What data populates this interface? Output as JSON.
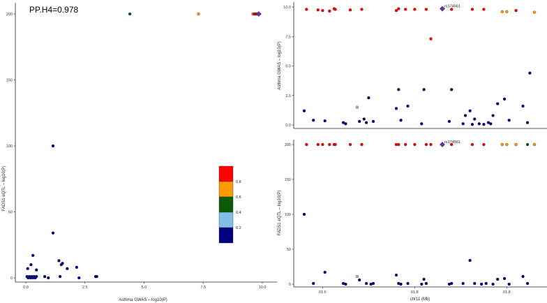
{
  "annotation": "PP.H4=0.978",
  "colors": {
    "bin_02": "#00007f",
    "bin_04": "#7fbfe6",
    "bin_06": "#0a5a0a",
    "bin_08": "#ff9a00",
    "bin_10": "#ff0000",
    "lead": "#7030a0"
  },
  "chart_data": [
    {
      "id": "scatter",
      "type": "scatter",
      "xlabel": "Asthma GWAS – log10(P)",
      "ylabel": "FADS1 eQTL – log10(P)",
      "xlim": [
        0,
        10
      ],
      "ylim": [
        0,
        200
      ],
      "xticks": [
        "0.0",
        "2.5",
        "5.0",
        "7.5",
        "10.0"
      ],
      "yticks": [
        "0",
        "50",
        "100",
        "150",
        "200"
      ],
      "legend": {
        "placement": "right",
        "labels": [
          "0.2",
          "0.4",
          "0.6",
          "0.8"
        ]
      },
      "points": [
        {
          "x": 0.05,
          "y": 1,
          "c": "bin_02"
        },
        {
          "x": 0.1,
          "y": 0,
          "c": "bin_02"
        },
        {
          "x": 0.15,
          "y": 1,
          "c": "bin_02"
        },
        {
          "x": 0.2,
          "y": 0,
          "c": "bin_02"
        },
        {
          "x": 0.25,
          "y": 1,
          "c": "bin_02"
        },
        {
          "x": 0.3,
          "y": 0,
          "c": "bin_02"
        },
        {
          "x": 0.35,
          "y": 1,
          "c": "bin_02"
        },
        {
          "x": 0.4,
          "y": 0,
          "c": "bin_02"
        },
        {
          "x": 0.45,
          "y": 1,
          "c": "bin_02"
        },
        {
          "x": 0.08,
          "y": 7,
          "c": "bin_02"
        },
        {
          "x": 0.22,
          "y": 10,
          "c": "bin_02"
        },
        {
          "x": 0.3,
          "y": 17,
          "c": "bin_02"
        },
        {
          "x": 0.45,
          "y": 6,
          "c": "bin_02"
        },
        {
          "x": 0.8,
          "y": 1,
          "c": "bin_02"
        },
        {
          "x": 0.95,
          "y": 0,
          "c": "bin_02"
        },
        {
          "x": 1.15,
          "y": 100,
          "c": "bin_02"
        },
        {
          "x": 1.15,
          "y": 34,
          "c": "bin_02"
        },
        {
          "x": 1.4,
          "y": 13,
          "c": "bin_02"
        },
        {
          "x": 1.5,
          "y": 10,
          "c": "bin_02"
        },
        {
          "x": 1.55,
          "y": 11,
          "c": "bin_02"
        },
        {
          "x": 1.45,
          "y": 1,
          "c": "bin_02"
        },
        {
          "x": 1.75,
          "y": 7,
          "c": "bin_02"
        },
        {
          "x": 2.15,
          "y": 8,
          "c": "bin_02"
        },
        {
          "x": 2.25,
          "y": 0,
          "c": "bin_02"
        },
        {
          "x": 2.95,
          "y": 1,
          "c": "bin_02"
        },
        {
          "x": 3.0,
          "y": 1,
          "c": "bin_02"
        },
        {
          "x": 4.4,
          "y": 200,
          "c": "bin_06"
        },
        {
          "x": 7.3,
          "y": 200,
          "c": "bin_08"
        },
        {
          "x": 9.6,
          "y": 200,
          "c": "bin_08"
        },
        {
          "x": 9.65,
          "y": 200,
          "c": "bin_10"
        },
        {
          "x": 9.7,
          "y": 200,
          "c": "bin_10"
        },
        {
          "x": 9.72,
          "y": 200,
          "c": "bin_10"
        },
        {
          "x": 9.75,
          "y": 200,
          "c": "bin_10"
        },
        {
          "x": 9.78,
          "y": 200,
          "c": "bin_10"
        },
        {
          "x": 9.8,
          "y": 200,
          "c": "bin_10"
        },
        {
          "x": 9.85,
          "y": 200,
          "c": "lead",
          "lead": true
        }
      ]
    },
    {
      "id": "gwas",
      "type": "scatter",
      "xlabel": "",
      "ylabel": "Asthma GWAS – log10(P)",
      "ylim": [
        0,
        10
      ],
      "yticks": [
        "0.0",
        "2.5",
        "5.0",
        "7.5",
        "10.0"
      ],
      "lead_label": "rs174561",
      "points": [
        {
          "x": 0.01,
          "y": 9.8,
          "c": "bin_10"
        },
        {
          "x": 0.06,
          "y": 9.75,
          "c": "bin_10"
        },
        {
          "x": 0.08,
          "y": 9.7,
          "c": "bin_10"
        },
        {
          "x": 0.11,
          "y": 9.65,
          "c": "bin_10"
        },
        {
          "x": 0.13,
          "y": 9.85,
          "c": "bin_10"
        },
        {
          "x": 0.135,
          "y": 9.8,
          "c": "bin_10"
        },
        {
          "x": 0.2,
          "y": 9.75,
          "c": "bin_10"
        },
        {
          "x": 0.25,
          "y": 9.8,
          "c": "bin_10"
        },
        {
          "x": 0.4,
          "y": 9.7,
          "c": "bin_10"
        },
        {
          "x": 0.41,
          "y": 9.85,
          "c": "bin_10"
        },
        {
          "x": 0.44,
          "y": 9.8,
          "c": "bin_10"
        },
        {
          "x": 0.48,
          "y": 9.8,
          "c": "bin_10"
        },
        {
          "x": 0.53,
          "y": 9.8,
          "c": "bin_10"
        },
        {
          "x": 0.55,
          "y": 7.3,
          "c": "bin_10"
        },
        {
          "x": 0.6,
          "y": 9.85,
          "c": "lead",
          "lead": true
        },
        {
          "x": 0.64,
          "y": 9.8,
          "c": "bin_10"
        },
        {
          "x": 0.73,
          "y": 9.8,
          "c": "bin_10"
        },
        {
          "x": 0.78,
          "y": 9.8,
          "c": "bin_10"
        },
        {
          "x": 0.86,
          "y": 9.6,
          "c": "bin_08"
        },
        {
          "x": 0.88,
          "y": 9.6,
          "c": "bin_08"
        },
        {
          "x": 0.92,
          "y": 9.7,
          "c": "bin_10"
        },
        {
          "x": 1.0,
          "y": 9.55,
          "c": "bin_08"
        },
        {
          "x": 0.0,
          "y": 1.2,
          "c": "bin_02"
        },
        {
          "x": 0.04,
          "y": 0.4,
          "c": "bin_02"
        },
        {
          "x": 0.09,
          "y": 0.35,
          "c": "bin_02"
        },
        {
          "x": 0.17,
          "y": 0.2,
          "c": "bin_02"
        },
        {
          "x": 0.18,
          "y": 0.1,
          "c": "bin_02"
        },
        {
          "x": 0.23,
          "y": 1.5,
          "c": "bin_04"
        },
        {
          "x": 0.24,
          "y": 0.3,
          "c": "bin_02"
        },
        {
          "x": 0.26,
          "y": 0.5,
          "c": "bin_02"
        },
        {
          "x": 0.27,
          "y": 0.2,
          "c": "bin_02"
        },
        {
          "x": 0.28,
          "y": 2.3,
          "c": "bin_02"
        },
        {
          "x": 0.3,
          "y": 0.3,
          "c": "bin_02"
        },
        {
          "x": 0.4,
          "y": 1.4,
          "c": "bin_02"
        },
        {
          "x": 0.41,
          "y": 3.0,
          "c": "bin_02"
        },
        {
          "x": 0.42,
          "y": 0.4,
          "c": "bin_02"
        },
        {
          "x": 0.45,
          "y": 1.6,
          "c": "bin_02"
        },
        {
          "x": 0.51,
          "y": 0.1,
          "c": "bin_02"
        },
        {
          "x": 0.52,
          "y": 3.0,
          "c": "bin_02"
        },
        {
          "x": 0.63,
          "y": 0.3,
          "c": "bin_02"
        },
        {
          "x": 0.64,
          "y": 3.0,
          "c": "bin_02"
        },
        {
          "x": 0.69,
          "y": 0.1,
          "c": "bin_02"
        },
        {
          "x": 0.7,
          "y": 0.8,
          "c": "bin_02"
        },
        {
          "x": 0.72,
          "y": 1.2,
          "c": "bin_02"
        },
        {
          "x": 0.73,
          "y": 0.05,
          "c": "bin_02"
        },
        {
          "x": 0.74,
          "y": 0.5,
          "c": "bin_02"
        },
        {
          "x": 0.76,
          "y": 0.1,
          "c": "bin_02"
        },
        {
          "x": 0.78,
          "y": 0.05,
          "c": "bin_02"
        },
        {
          "x": 0.8,
          "y": 0.2,
          "c": "bin_02"
        },
        {
          "x": 0.81,
          "y": 0.1,
          "c": "bin_02"
        },
        {
          "x": 0.82,
          "y": 0.8,
          "c": "bin_02"
        },
        {
          "x": 0.84,
          "y": 1.8,
          "c": "bin_02"
        },
        {
          "x": 0.87,
          "y": 2.2,
          "c": "bin_02"
        },
        {
          "x": 0.89,
          "y": 0.4,
          "c": "bin_02"
        },
        {
          "x": 0.95,
          "y": 1.6,
          "c": "bin_02"
        },
        {
          "x": 0.97,
          "y": 0.2,
          "c": "bin_02"
        },
        {
          "x": 0.98,
          "y": 4.4,
          "c": "bin_02"
        }
      ]
    },
    {
      "id": "eqtl",
      "type": "scatter",
      "xlabel": "chr11 (Mb)",
      "ylabel": "FADS1 eQTL – log10(P)",
      "ylim": [
        0,
        200
      ],
      "yticks": [
        "0",
        "50",
        "100",
        "150",
        "200"
      ],
      "xticks": [
        "61.6",
        "61.8",
        "61.8"
      ],
      "lead_label": "rs174561",
      "points": [
        {
          "x": 0.01,
          "y": 200,
          "c": "bin_10"
        },
        {
          "x": 0.06,
          "y": 200,
          "c": "bin_10"
        },
        {
          "x": 0.08,
          "y": 200,
          "c": "bin_10"
        },
        {
          "x": 0.11,
          "y": 200,
          "c": "bin_10"
        },
        {
          "x": 0.13,
          "y": 200,
          "c": "bin_10"
        },
        {
          "x": 0.135,
          "y": 200,
          "c": "bin_10"
        },
        {
          "x": 0.2,
          "y": 200,
          "c": "bin_10"
        },
        {
          "x": 0.25,
          "y": 200,
          "c": "bin_10"
        },
        {
          "x": 0.4,
          "y": 200,
          "c": "bin_10"
        },
        {
          "x": 0.41,
          "y": 200,
          "c": "bin_10"
        },
        {
          "x": 0.44,
          "y": 200,
          "c": "bin_10"
        },
        {
          "x": 0.48,
          "y": 200,
          "c": "bin_10"
        },
        {
          "x": 0.53,
          "y": 200,
          "c": "bin_10"
        },
        {
          "x": 0.55,
          "y": 200,
          "c": "bin_10"
        },
        {
          "x": 0.6,
          "y": 200,
          "c": "lead",
          "lead": true
        },
        {
          "x": 0.64,
          "y": 200,
          "c": "bin_10"
        },
        {
          "x": 0.73,
          "y": 200,
          "c": "bin_10"
        },
        {
          "x": 0.78,
          "y": 200,
          "c": "bin_10"
        },
        {
          "x": 0.86,
          "y": 200,
          "c": "bin_08"
        },
        {
          "x": 0.88,
          "y": 200,
          "c": "bin_08"
        },
        {
          "x": 0.92,
          "y": 200,
          "c": "bin_08"
        },
        {
          "x": 0.97,
          "y": 200,
          "c": "bin_06"
        },
        {
          "x": 1.0,
          "y": 200,
          "c": "bin_08"
        },
        {
          "x": 0.0,
          "y": 100,
          "c": "bin_02"
        },
        {
          "x": 0.04,
          "y": 1,
          "c": "bin_02"
        },
        {
          "x": 0.09,
          "y": 17,
          "c": "bin_02"
        },
        {
          "x": 0.17,
          "y": 1,
          "c": "bin_02"
        },
        {
          "x": 0.18,
          "y": 0,
          "c": "bin_02"
        },
        {
          "x": 0.23,
          "y": 11,
          "c": "bin_04"
        },
        {
          "x": 0.24,
          "y": 6,
          "c": "bin_02"
        },
        {
          "x": 0.27,
          "y": 1,
          "c": "bin_02"
        },
        {
          "x": 0.29,
          "y": 0,
          "c": "bin_02"
        },
        {
          "x": 0.3,
          "y": 1,
          "c": "bin_02"
        },
        {
          "x": 0.4,
          "y": 13,
          "c": "bin_02"
        },
        {
          "x": 0.41,
          "y": 1,
          "c": "bin_02"
        },
        {
          "x": 0.42,
          "y": 0,
          "c": "bin_02"
        },
        {
          "x": 0.45,
          "y": 1,
          "c": "bin_02"
        },
        {
          "x": 0.51,
          "y": 0,
          "c": "bin_02"
        },
        {
          "x": 0.52,
          "y": 7,
          "c": "bin_02"
        },
        {
          "x": 0.53,
          "y": 1,
          "c": "bin_02"
        },
        {
          "x": 0.63,
          "y": 0,
          "c": "bin_02"
        },
        {
          "x": 0.64,
          "y": 1,
          "c": "bin_02"
        },
        {
          "x": 0.69,
          "y": 1,
          "c": "bin_02"
        },
        {
          "x": 0.72,
          "y": 34,
          "c": "bin_02"
        },
        {
          "x": 0.74,
          "y": 1,
          "c": "bin_02"
        },
        {
          "x": 0.77,
          "y": 0,
          "c": "bin_02"
        },
        {
          "x": 0.79,
          "y": 1,
          "c": "bin_02"
        },
        {
          "x": 0.82,
          "y": 0,
          "c": "bin_02"
        },
        {
          "x": 0.84,
          "y": 7,
          "c": "bin_02"
        },
        {
          "x": 0.87,
          "y": 8,
          "c": "bin_02"
        },
        {
          "x": 0.89,
          "y": 0,
          "c": "bin_02"
        },
        {
          "x": 0.95,
          "y": 11,
          "c": "bin_02"
        },
        {
          "x": 0.97,
          "y": 1,
          "c": "bin_02"
        }
      ]
    }
  ]
}
